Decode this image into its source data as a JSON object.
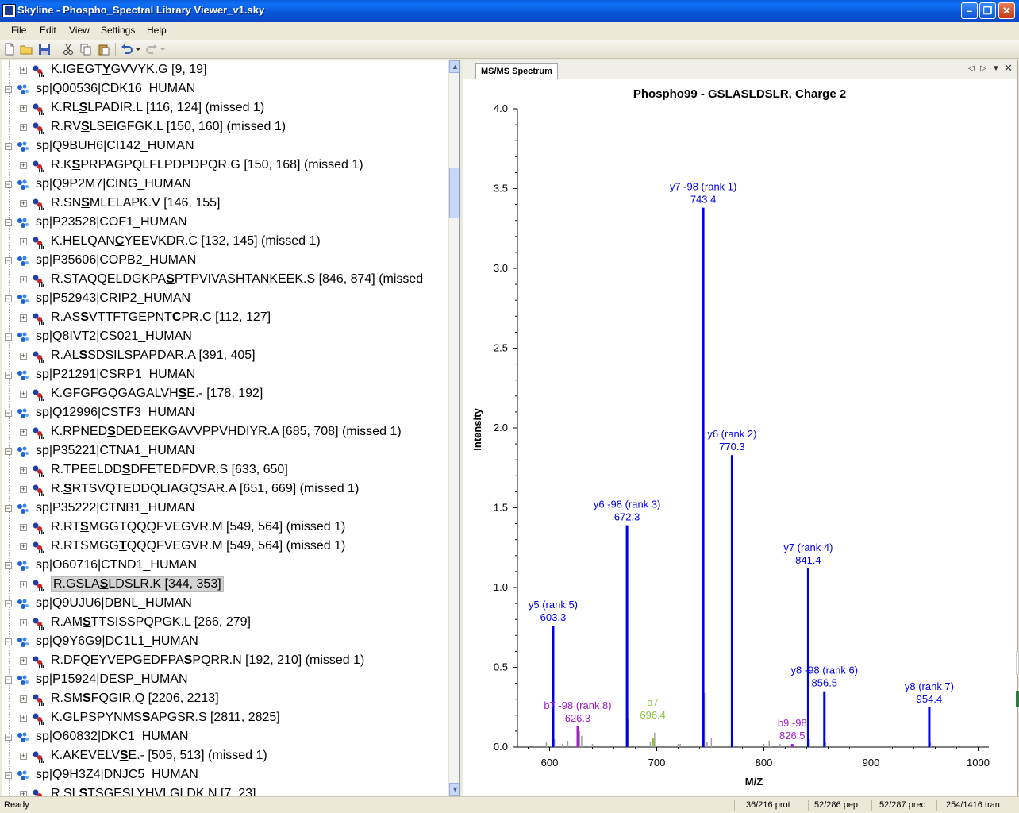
{
  "window": {
    "title": "Skyline - Phospho_Spectral Library Viewer_v1.sky"
  },
  "menu": [
    "File",
    "Edit",
    "View",
    "Settings",
    "Help"
  ],
  "tree": {
    "rows": [
      {
        "type": "peptide",
        "pre": "K.IGEGT",
        "mod": "Y",
        "post": "GVVYK.G [9, 19]"
      },
      {
        "type": "protein",
        "text": "sp|Q00536|CDK16_HUMAN"
      },
      {
        "type": "peptide",
        "pre": "K.RL",
        "mod": "S",
        "post": "LPADIR.L [116, 124] (missed 1)"
      },
      {
        "type": "peptide",
        "pre": "R.RV",
        "mod": "S",
        "post": "LSEIGFGK.L [150, 160] (missed 1)"
      },
      {
        "type": "protein",
        "text": "sp|Q9BUH6|CI142_HUMAN"
      },
      {
        "type": "peptide",
        "pre": "R.K",
        "mod": "S",
        "post": "PRPAGPQLFLPDPDPQR.G [150, 168] (missed 1)"
      },
      {
        "type": "protein",
        "text": "sp|Q9P2M7|CING_HUMAN"
      },
      {
        "type": "peptide",
        "pre": "R.SN",
        "mod": "S",
        "post": "MLELAPK.V [146, 155]"
      },
      {
        "type": "protein",
        "text": "sp|P23528|COF1_HUMAN"
      },
      {
        "type": "peptide",
        "pre": "K.HELQAN",
        "mod": "C",
        "post": "YEEVKDR.C [132, 145] (missed 1)"
      },
      {
        "type": "protein",
        "text": "sp|P35606|COPB2_HUMAN"
      },
      {
        "type": "peptide",
        "pre": "R.STAQQELDGKPA",
        "mod": "S",
        "post": "PTPVIVASHTANKEEK.S [846, 874] (missed"
      },
      {
        "type": "protein",
        "text": "sp|P52943|CRIP2_HUMAN"
      },
      {
        "type": "peptide",
        "pre": "R.AS",
        "mod": "S",
        "post": "VTTFTGEPNT",
        "mod2": "C",
        "post2": "PR.C [112, 127]"
      },
      {
        "type": "protein",
        "text": "sp|Q8IVT2|CS021_HUMAN"
      },
      {
        "type": "peptide",
        "pre": "R.AL",
        "mod": "S",
        "post": "SDSILSPAPDAR.A [391, 405]"
      },
      {
        "type": "protein",
        "text": "sp|P21291|CSRP1_HUMAN"
      },
      {
        "type": "peptide",
        "pre": "K.GFGFGQGAGALVH",
        "mod": "S",
        "post": "E.- [178, 192]"
      },
      {
        "type": "protein",
        "text": "sp|Q12996|CSTF3_HUMAN"
      },
      {
        "type": "peptide",
        "pre": "K.RPNED",
        "mod": "S",
        "post": "DEDEEKGAVVPPVHDIYR.A [685, 708] (missed 1)"
      },
      {
        "type": "protein",
        "text": "sp|P35221|CTNA1_HUMAN"
      },
      {
        "type": "peptide",
        "pre": "R.TPEELDD",
        "mod": "S",
        "post": "DFETEDFDVR.S [633, 650]"
      },
      {
        "type": "peptide",
        "pre": "R.",
        "mod": "S",
        "post": "RTSVQTEDDQLIAGQSAR.A [651, 669] (missed 1)"
      },
      {
        "type": "protein",
        "text": "sp|P35222|CTNB1_HUMAN"
      },
      {
        "type": "peptide",
        "pre": "R.RT",
        "mod": "S",
        "post": "MGGTQQQFVEGVR.M [549, 564] (missed 1)"
      },
      {
        "type": "peptide",
        "pre": "R.RTSMGG",
        "mod": "T",
        "post": "QQQFVEGVR.M [549, 564] (missed 1)"
      },
      {
        "type": "protein",
        "text": "sp|O60716|CTND1_HUMAN"
      },
      {
        "type": "peptide",
        "pre": "R.GSLA",
        "mod": "S",
        "post": "LDSLR.K [344, 353]",
        "selected": true
      },
      {
        "type": "protein",
        "text": "sp|Q9UJU6|DBNL_HUMAN"
      },
      {
        "type": "peptide",
        "pre": "R.AM",
        "mod": "S",
        "post": "TTSISSPQPGK.L [266, 279]"
      },
      {
        "type": "protein",
        "text": "sp|Q9Y6G9|DC1L1_HUMAN"
      },
      {
        "type": "peptide",
        "pre": "R.DFQEYVEPGEDFPA",
        "mod": "S",
        "post": "PQRR.N [192, 210] (missed 1)"
      },
      {
        "type": "protein",
        "text": "sp|P15924|DESP_HUMAN"
      },
      {
        "type": "peptide",
        "pre": "R.SM",
        "mod": "S",
        "post": "FQGIR.Q [2206, 2213]"
      },
      {
        "type": "peptide",
        "pre": "K.GLPSPYNMS",
        "mod": "S",
        "post": "APGSR.S [2811, 2825]"
      },
      {
        "type": "protein",
        "text": "sp|O60832|DKC1_HUMAN"
      },
      {
        "type": "peptide",
        "pre": "K.AKEVELV",
        "mod": "S",
        "post": "E.- [505, 513] (missed 1)"
      },
      {
        "type": "protein",
        "text": "sp|Q9H3Z4|DNJC5_HUMAN"
      },
      {
        "type": "peptide",
        "pre": "R.SL",
        "mod": "S",
        "post": "TSGESLYHVLGLDK.N [7, 23]"
      }
    ]
  },
  "panel": {
    "tab_label": "MS/MS Spectrum"
  },
  "chart_data": {
    "type": "bar",
    "title": "Phospho99 - GSLASLDSLR, Charge 2",
    "xlabel": "M/Z",
    "ylabel": "Intensity",
    "xlim": [
      570,
      1010
    ],
    "ylim": [
      0,
      4.0
    ],
    "xticks": [
      "600",
      "700",
      "800",
      "900",
      "1000"
    ],
    "yticks": [
      "0.0",
      "0.5",
      "1.0",
      "1.5",
      "2.0",
      "2.5",
      "3.0",
      "3.5",
      "4.0"
    ],
    "colors": {
      "y": "#0000e8",
      "b": "#a020c8",
      "a": "#8cc43c",
      "noise": "#a0a0a0"
    },
    "peaks": [
      {
        "mz": 603.3,
        "value": 0.76,
        "ion": "y",
        "label": "y5 (rank 5)",
        "mzlabel": "603.3"
      },
      {
        "mz": 626.3,
        "value": 0.13,
        "ion": "b",
        "label": "b7 -98 (rank 8)",
        "mzlabel": "626.3"
      },
      {
        "mz": 672.3,
        "value": 1.39,
        "ion": "y",
        "label": "y6 -98 (rank 3)",
        "mzlabel": "672.3"
      },
      {
        "mz": 696.4,
        "value": 0.06,
        "ion": "a",
        "label": "a7",
        "mzlabel": "696.4"
      },
      {
        "mz": 743.4,
        "value": 3.38,
        "ion": "y",
        "label": "y7 -98 (rank 1)",
        "mzlabel": "743.4"
      },
      {
        "mz": 770.3,
        "value": 1.83,
        "ion": "y",
        "label": "y6 (rank 2)",
        "mzlabel": "770.3"
      },
      {
        "mz": 826.5,
        "value": 0.02,
        "ion": "b",
        "label": "b9 -98",
        "mzlabel": "826.5"
      },
      {
        "mz": 841.4,
        "value": 1.12,
        "ion": "y",
        "label": "y7 (rank 4)",
        "mzlabel": "841.4"
      },
      {
        "mz": 856.5,
        "value": 0.35,
        "ion": "y",
        "label": "y8 -98 (rank 6)",
        "mzlabel": "856.5"
      },
      {
        "mz": 954.4,
        "value": 0.25,
        "ion": "y",
        "label": "y8 (rank 7)",
        "mzlabel": "954.4"
      }
    ],
    "noise_peaks": [
      {
        "mz": 597,
        "value": 0.03
      },
      {
        "mz": 604.5,
        "value": 0.05
      },
      {
        "mz": 612,
        "value": 0.02
      },
      {
        "mz": 617,
        "value": 0.04
      },
      {
        "mz": 628,
        "value": 0.1
      },
      {
        "mz": 630,
        "value": 0.07
      },
      {
        "mz": 640,
        "value": 0.02
      },
      {
        "mz": 673.5,
        "value": 0.18
      },
      {
        "mz": 694,
        "value": 0.03
      },
      {
        "mz": 698,
        "value": 0.09
      },
      {
        "mz": 720,
        "value": 0.02
      },
      {
        "mz": 722,
        "value": 0.02
      },
      {
        "mz": 744.5,
        "value": 0.34
      },
      {
        "mz": 747,
        "value": 0.03
      },
      {
        "mz": 751,
        "value": 0.06
      },
      {
        "mz": 771,
        "value": 0.05
      },
      {
        "mz": 800,
        "value": 0.02
      },
      {
        "mz": 805,
        "value": 0.04
      },
      {
        "mz": 815,
        "value": 0.02
      },
      {
        "mz": 842.5,
        "value": 0.05
      },
      {
        "mz": 857.5,
        "value": 0.03
      },
      {
        "mz": 955.5,
        "value": 0.03
      }
    ]
  },
  "status": {
    "ready": "Ready",
    "proteins": "36/216 prot",
    "peptides": "52/286 pep",
    "precursors": "52/287 prec",
    "transitions": "254/1416 tran"
  }
}
